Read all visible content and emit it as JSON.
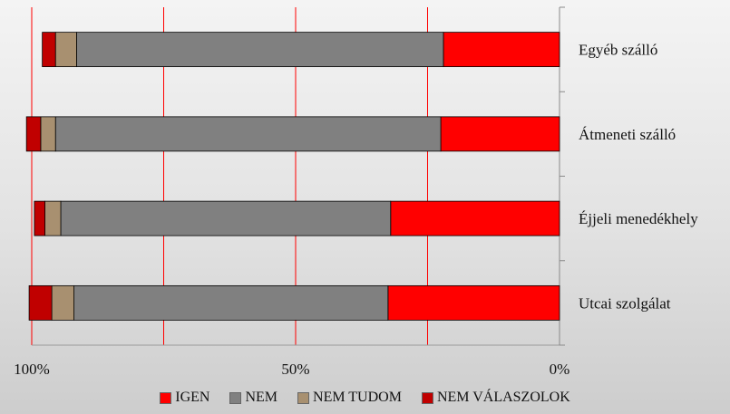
{
  "chart_data": {
    "type": "bar",
    "orientation": "horizontal-stacked-100",
    "x_reversed": true,
    "categories": [
      "Egyéb szálló",
      "Átmeneti szálló",
      "Éjjeli menedékhely",
      "Utcai szolgálat"
    ],
    "series": [
      {
        "name": "IGEN",
        "color": "#ff0000",
        "values": [
          22,
          22.5,
          32,
          32.5
        ]
      },
      {
        "name": "NEM",
        "color": "#808080",
        "values": [
          69.5,
          73,
          62.5,
          59.5
        ]
      },
      {
        "name": "NEM TUDOM",
        "color": "#a89070",
        "values": [
          4,
          2.8,
          3,
          4.2
        ]
      },
      {
        "name": "NEM VÁLASZOLOK",
        "color": "#c00000",
        "values": [
          2.5,
          2.7,
          2,
          4.3
        ]
      }
    ],
    "xlim": [
      0,
      100
    ],
    "x_ticks": [
      {
        "value": 100,
        "label": "100%"
      },
      {
        "value": 50,
        "label": "50%"
      },
      {
        "value": 0,
        "label": "0%"
      }
    ],
    "gridlines": [
      0,
      25,
      50,
      75,
      100
    ],
    "grid_color": "#ff0000",
    "legend_position": "bottom"
  }
}
